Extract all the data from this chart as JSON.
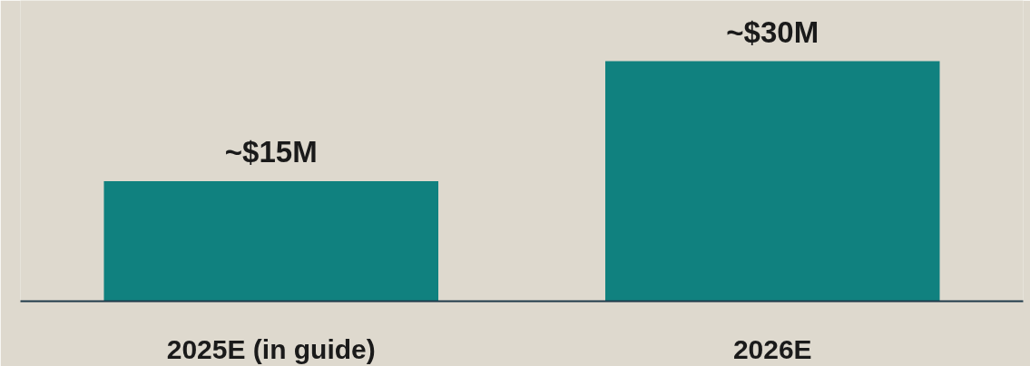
{
  "chart_data": {
    "type": "bar",
    "categories": [
      "2025E (in guide)",
      "2026E"
    ],
    "values": [
      15,
      30
    ],
    "value_labels": [
      "~$15M",
      "~$30M"
    ],
    "colors": [
      "#10817f",
      "#10817f"
    ],
    "ylim": [
      0,
      37.6
    ],
    "tick_labels": "x",
    "grid": false
  }
}
